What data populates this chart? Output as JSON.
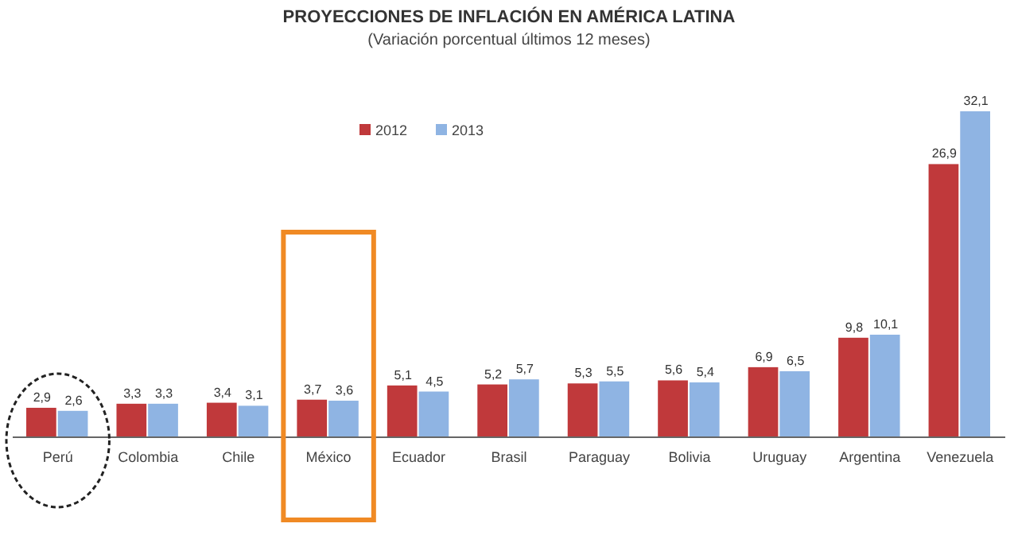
{
  "chart_data": {
    "type": "bar",
    "title": "PROYECCIONES DE INFLACIÓN EN AMÉRICA LATINA",
    "subtitle": "(Variación porcentual últimos 12 meses)",
    "categories": [
      "Perú",
      "Colombia",
      "Chile",
      "México",
      "Ecuador",
      "Brasil",
      "Paraguay",
      "Bolivia",
      "Uruguay",
      "Argentina",
      "Venezuela"
    ],
    "series": [
      {
        "name": "2012",
        "color": "#c0393b",
        "values": [
          2.9,
          3.3,
          3.4,
          3.7,
          5.1,
          5.2,
          5.3,
          5.6,
          6.9,
          9.8,
          26.9
        ],
        "value_labels": [
          "2,9",
          "3,3",
          "3,4",
          "3,7",
          "5,1",
          "5,2",
          "5,3",
          "5,6",
          "6,9",
          "9,8",
          "26,9"
        ]
      },
      {
        "name": "2013",
        "color": "#8fb4e3",
        "values": [
          2.6,
          3.3,
          3.1,
          3.6,
          4.5,
          5.7,
          5.5,
          5.4,
          6.5,
          10.1,
          32.1
        ],
        "value_labels": [
          "2,6",
          "3,3",
          "3,1",
          "3,6",
          "4,5",
          "5,7",
          "5,5",
          "5,4",
          "6,5",
          "10,1",
          "32,1"
        ]
      }
    ],
    "legend": "top",
    "grid": false
  }
}
